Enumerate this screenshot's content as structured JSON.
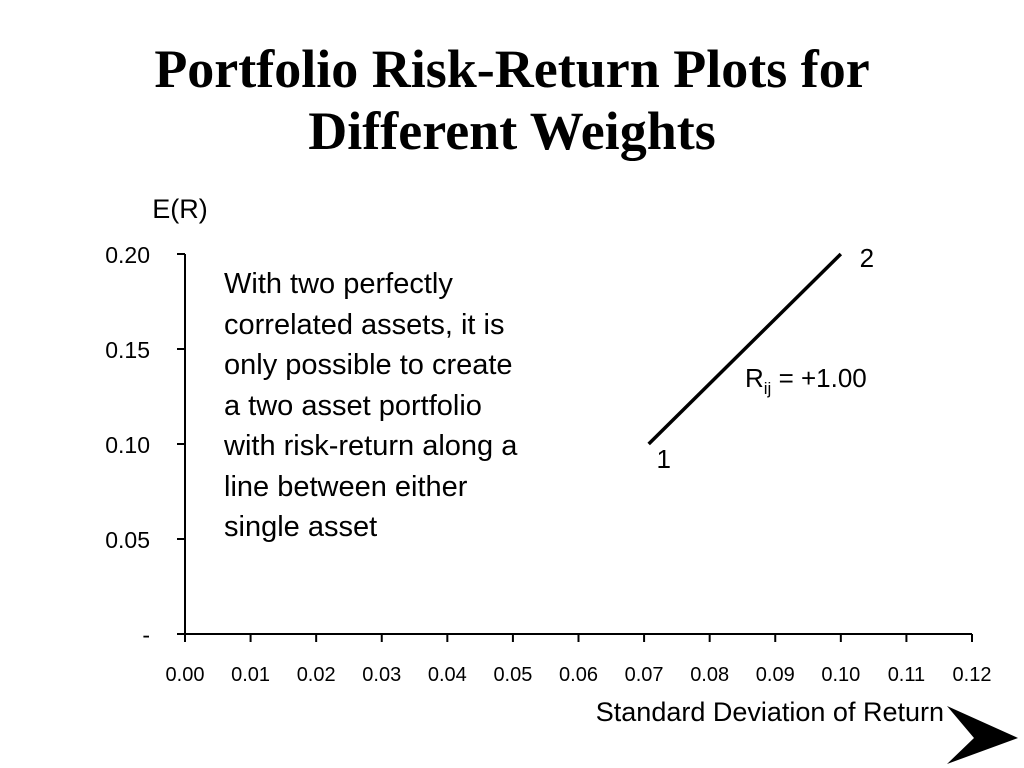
{
  "slide": {
    "title_line1": "Portfolio Risk-Return Plots for",
    "title_line2": "Different Weights",
    "annotation": "With two perfectly correlated assets, it is only possible to create a two asset portfolio with risk-return along a line between either single asset",
    "next_icon": "next-slide-arrow-icon"
  },
  "chart_data": {
    "type": "line",
    "title": "",
    "xlabel": "Standard Deviation of Return",
    "ylabel": "E(R)",
    "xlim": [
      0.0,
      0.12
    ],
    "ylim": [
      0.0,
      0.2
    ],
    "x_ticks": [
      "0.00",
      "0.01",
      "0.02",
      "0.03",
      "0.04",
      "0.05",
      "0.06",
      "0.07",
      "0.08",
      "0.09",
      "0.10",
      "0.11",
      "0.12"
    ],
    "y_ticks": [
      "-",
      "0.05",
      "0.10",
      "0.15",
      "0.20"
    ],
    "y_tick_values": [
      0.0,
      0.05,
      0.1,
      0.15,
      0.2
    ],
    "grid": false,
    "series": [
      {
        "values": [
          {
            "x": 0.0707,
            "y": 0.1
          },
          {
            "x": 0.1,
            "y": 0.2
          }
        ]
      }
    ],
    "point_labels": [
      {
        "text": "1",
        "x": 0.0707,
        "y": 0.1
      },
      {
        "text": "2",
        "x": 0.1,
        "y": 0.2
      }
    ],
    "correlation_label": {
      "main": "R",
      "subscript": "ij",
      "value": " = +1.00"
    },
    "line_color": "#000000"
  }
}
